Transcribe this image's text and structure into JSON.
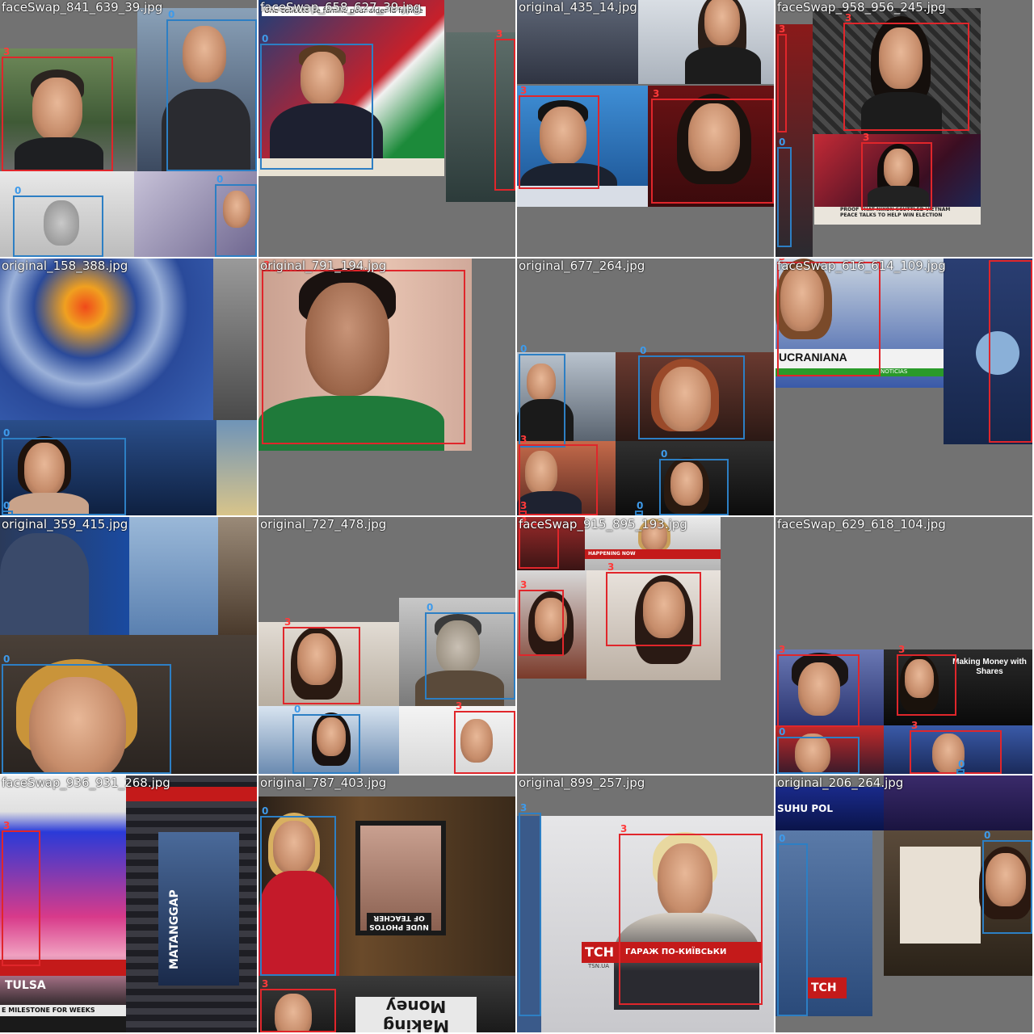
{
  "colors": {
    "class_3": "#e0262b",
    "class_0": "#2d7fc4",
    "background": "#727272"
  },
  "tiles": [
    {
      "filename": "faceSwap_841_639_39.jpg",
      "labels": [
        "3",
        "0",
        "0",
        "0"
      ]
    },
    {
      "filename": "faceSwap_658_627_39.jpg",
      "labels": [
        "0",
        "3"
      ],
      "overlay_text": "Une collecte de famille pour aider la famille"
    },
    {
      "filename": "original_435_14.jpg",
      "labels": [
        "3",
        "3"
      ]
    },
    {
      "filename": "faceSwap_958_956_245.jpg",
      "labels": [
        "3",
        "3",
        "3",
        "0"
      ],
      "ticker": "PROOF THAT NIXON SCUTTLED VIETNAM PEACE TALKS TO HELP WIN ELECTION"
    },
    {
      "filename": "original_158_388.jpg",
      "labels": [
        "0",
        "0"
      ]
    },
    {
      "filename": "original_791_194.jpg",
      "labels": [
        "3"
      ]
    },
    {
      "filename": "original_677_264.jpg",
      "labels": [
        "0",
        "0",
        "3",
        "0",
        "3",
        "0"
      ]
    },
    {
      "filename": "faceSwap_616_614_109.jpg",
      "labels": [
        "3",
        "3"
      ],
      "banner": "UCRANIANA",
      "banner_sub": "NOTICIAS"
    },
    {
      "filename": "original_359_415.jpg",
      "labels": [
        "0"
      ]
    },
    {
      "filename": "original_727_478.jpg",
      "labels": [
        "3",
        "0",
        "0",
        "3"
      ]
    },
    {
      "filename": "faceSwap_915_895_193.jpg",
      "labels": [
        "3",
        "3",
        "3"
      ],
      "ticker": "HAPPENING NOW"
    },
    {
      "filename": "faceSwap_629_618_104.jpg",
      "labels": [
        "3",
        "3",
        "0",
        "3",
        "0"
      ],
      "sign": "Making Money with Shares"
    },
    {
      "filename": "faceSwap_936_931_268.jpg",
      "labels": [
        "3"
      ],
      "ticker": "TULSA",
      "ticker2": "E MILESTONE FOR WEEKS",
      "sign": "MATANGGAP"
    },
    {
      "filename": "original_787_403.jpg",
      "labels": [
        "0",
        "3"
      ],
      "sign": "NUDE PHOTOS OF TEACHER",
      "bottom_sign": "Making Money"
    },
    {
      "filename": "original_899_257.jpg",
      "labels": [
        "3"
      ],
      "logo": "ТСН",
      "caption": "ГАРАЖ ПО-КИЇВСЬКИ",
      "site": "TSN.UA"
    },
    {
      "filename": "original_206_264.jpg",
      "labels": [
        "0",
        "0"
      ],
      "logo": "ТСН",
      "ticker": "SUHU POL"
    }
  ]
}
